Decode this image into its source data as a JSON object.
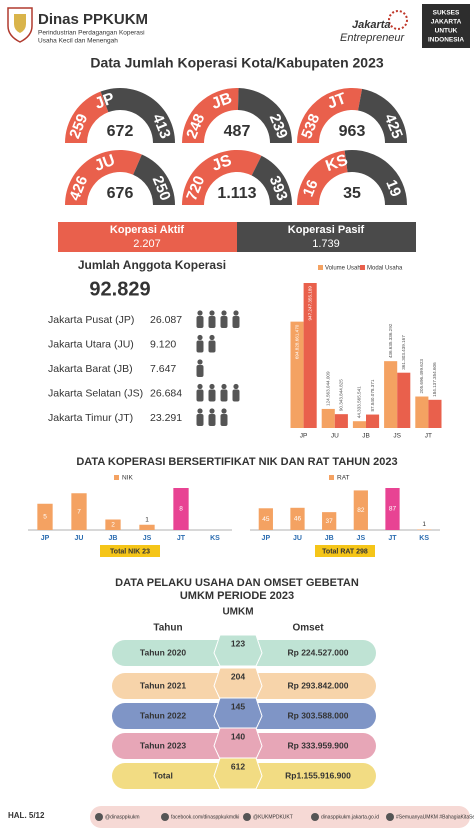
{
  "header": {
    "org": "Dinas PPKUKM",
    "org_sub": [
      "Perindustrian Perdagangan Koperasi",
      "Usaha Kecil dan Menengah"
    ],
    "brand": [
      "Jakarta",
      "Entrepreneur"
    ],
    "slogan": [
      "SUKSES",
      "JAKARTA",
      "UNTUK",
      "INDONESIA"
    ]
  },
  "title": "Data Jumlah Koperasi Kota/Kabupaten 2023",
  "gauges": [
    {
      "code": "JP",
      "active": 259,
      "passive": 413,
      "total": "672"
    },
    {
      "code": "JB",
      "active": 248,
      "passive": 239,
      "total": "487"
    },
    {
      "code": "JT",
      "active": 538,
      "passive": 425,
      "total": "963"
    },
    {
      "code": "JU",
      "active": 426,
      "passive": 250,
      "total": "676"
    },
    {
      "code": "JS",
      "active": 720,
      "passive": 393,
      "total": "1.113"
    },
    {
      "code": "KS",
      "active": 16,
      "passive": 19,
      "total": "35"
    }
  ],
  "summary": {
    "active_label": "Koperasi Aktif",
    "active_total": "2.207",
    "passive_label": "Koperasi Pasif",
    "passive_total": "1.739"
  },
  "members": {
    "title": "Jumlah Anggota Koperasi",
    "total": "92.829",
    "rows": [
      {
        "label": "Jakarta Pusat (JP)",
        "value": "26.087"
      },
      {
        "label": "Jakarta Utara (JU)",
        "value": "9.120"
      },
      {
        "label": "Jakarta Barat (JB)",
        "value": "7.647"
      },
      {
        "label": "Jakarta Selatan (JS)",
        "value": "26.684"
      },
      {
        "label": "Jakarta Timur (JT)",
        "value": "23.291"
      }
    ]
  },
  "business_chart": {
    "type": "bar",
    "categories": [
      "JP",
      "JU",
      "JB",
      "JS",
      "JT"
    ],
    "series": [
      {
        "name": "Volume Usaha",
        "color": "#f4a262",
        "values": [
          694828661470,
          124563044009,
          44333565541,
          436635336292,
          205696499623
        ],
        "value_labels": [
          "694.828.661.470",
          "124.563.044.009",
          "44.333.565.541",
          "436.635.336.292",
          "205.696.499.623"
        ]
      },
      {
        "name": "Modal Usaha",
        "color": "#e9604c",
        "values": [
          947247355189,
          90343844825,
          87840078371,
          361303439167,
          184137354606
        ],
        "value_labels": [
          "947.247.355.189",
          "90.343.844.825",
          "87.840.078.371",
          "361.303.439.167",
          "184.137.354.606"
        ]
      }
    ]
  },
  "certification": {
    "title": "DATA KOPERASI BERSERTIFIKAT NIK DAN RAT TAHUN 2023",
    "charts": [
      {
        "type": "bar",
        "name": "NIK",
        "color": "#f4a262",
        "categories": [
          "JP",
          "JU",
          "JB",
          "JS",
          "JT",
          "KS"
        ],
        "values": [
          5,
          7,
          2,
          1,
          8,
          0
        ],
        "total": "Total NIK 23"
      },
      {
        "type": "bar",
        "name": "RAT",
        "color": "#f4a262",
        "categories": [
          "JP",
          "JU",
          "JB",
          "JS",
          "JT",
          "KS"
        ],
        "values": [
          45,
          46,
          37,
          82,
          87,
          1
        ],
        "total": "Total RAT 298"
      }
    ]
  },
  "umkm": {
    "title": [
      "DATA PELAKU USAHA DAN OMSET GEBETAN",
      "UMKM PERIODE 2023"
    ],
    "headers": {
      "year": "Tahun",
      "count": "UMKM",
      "omset": "Omset"
    },
    "rows": [
      {
        "year": "Tahun 2020",
        "count": "123",
        "omset": "Rp 224.527.000"
      },
      {
        "year": "Tahun 2021",
        "count": "204",
        "omset": "Rp 293.842.000"
      },
      {
        "year": "Tahun 2022",
        "count": "145",
        "omset": "Rp 303.588.000"
      },
      {
        "year": "Tahun 2023",
        "count": "140",
        "omset": "Rp 333.959.900"
      },
      {
        "year": "Total",
        "count": "612",
        "omset": "Rp1.155.916.900"
      }
    ]
  },
  "footer": {
    "page": "HAL. 5/12",
    "links": [
      "@dinasppkukm",
      "facebook.com/dinasppkukmdki",
      "@KUKMPDKUKT",
      "dinasppkukm.jakarta.go.id",
      "#SemuanyaUMKM #BahagiaKitaSemua"
    ]
  }
}
